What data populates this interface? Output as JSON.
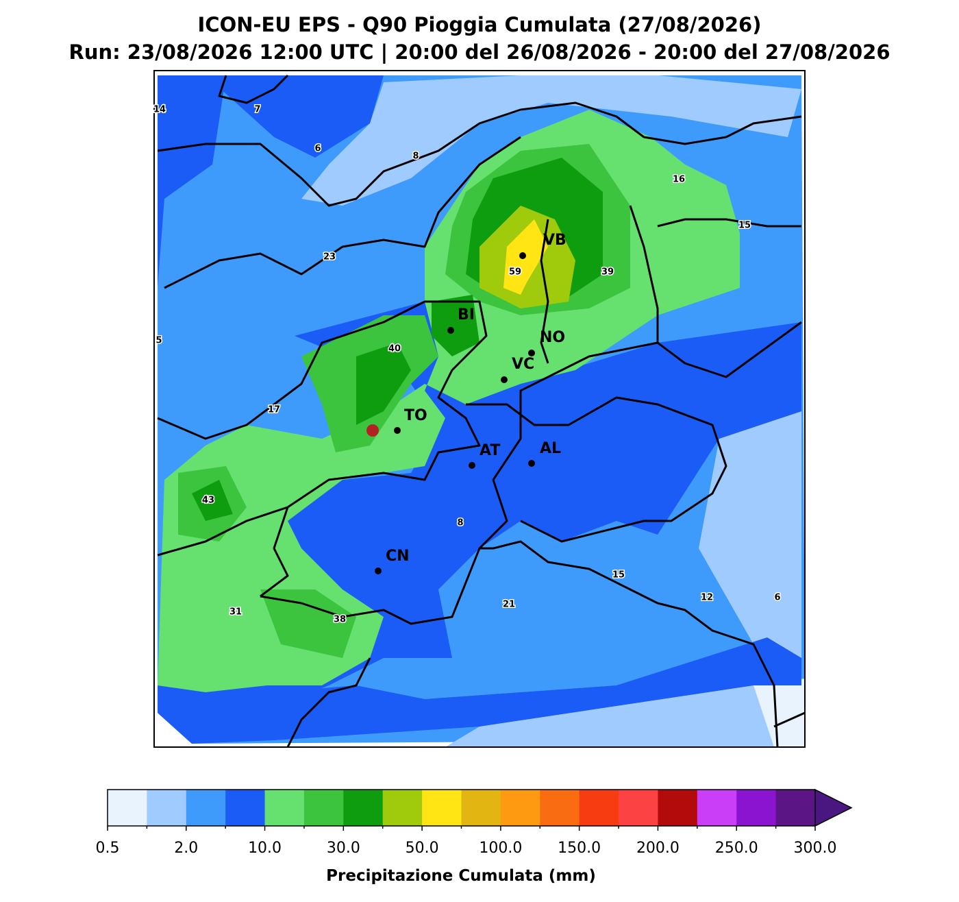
{
  "title": "ICON-EU EPS - Q90 Pioggia Cumulata (27/08/2026)",
  "subtitle": "Run: 23/08/2026 12:00 UTC | 20:00 del 26/08/2026 - 20:00 del 27/08/2026",
  "cities": [
    "VB",
    "BI",
    "NO",
    "VC",
    "TO",
    "AT",
    "AL",
    "CN"
  ],
  "value_labels": [
    "14",
    "7",
    "6",
    "8",
    "16",
    "15",
    "23",
    "59",
    "39",
    "5",
    "40",
    "17",
    "43",
    "8",
    "15",
    "12",
    "6",
    "31",
    "38",
    "21"
  ],
  "colorbar": {
    "label": "Precipitazione Cumulata (mm)",
    "ticks": [
      "0.5",
      "2.0",
      "10.0",
      "30.0",
      "50.0",
      "100.0",
      "150.0",
      "200.0",
      "250.0",
      "300.0"
    ],
    "colors": [
      "#e8f3fe",
      "#a0cbff",
      "#3f9bfb",
      "#1a5cf5",
      "#66e06e",
      "#3cc43f",
      "#0f9d10",
      "#a0cb0c",
      "#ffe514",
      "#e3b512",
      "#fd9a11",
      "#f96c11",
      "#f83c11",
      "#fc4242",
      "#b30b0b",
      "#c93ef6",
      "#8a14d0",
      "#5b1585"
    ],
    "extend_color": "#4a1780"
  }
}
